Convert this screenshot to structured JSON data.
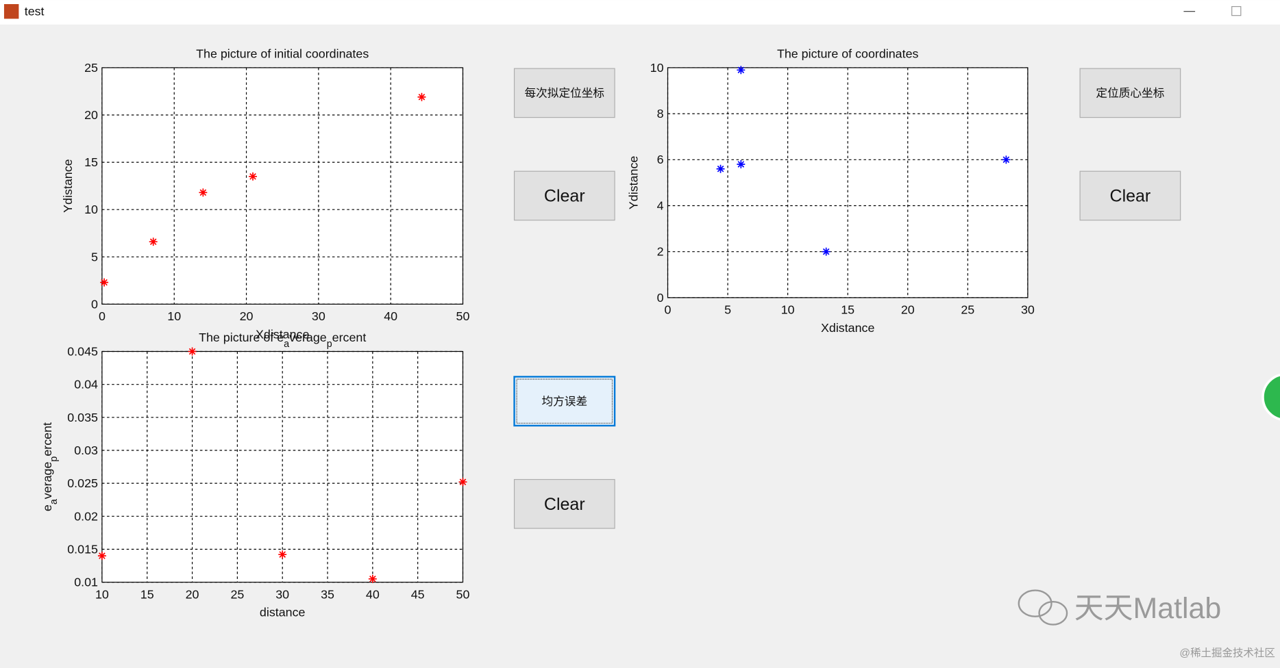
{
  "window": {
    "title": "test"
  },
  "chart_data": [
    {
      "type": "scatter",
      "title": "The picture of initial coordinates",
      "x_label": "Xdistance",
      "y_label": "Ydistance",
      "x": [
        0.3,
        7.1,
        14,
        20.9,
        44.3
      ],
      "values": [
        2.3,
        6.6,
        11.8,
        13.5,
        21.9
      ],
      "color": "#ff0000",
      "marker": "*",
      "xlim": [
        0,
        50
      ],
      "xticks": [
        0,
        10,
        20,
        30,
        40,
        50
      ],
      "ylim": [
        0,
        25
      ],
      "yticks": [
        0,
        5,
        10,
        15,
        20,
        25
      ],
      "grid": true
    },
    {
      "type": "scatter",
      "title": "The picture of coordinates",
      "x_label": "Xdistance",
      "y_label": "Ydistance",
      "x": [
        4.4,
        6.1,
        6.1,
        13.2,
        28.2
      ],
      "values": [
        5.6,
        5.8,
        9.9,
        2.0,
        6.0
      ],
      "color": "#0000ff",
      "marker": "*",
      "xlim": [
        0,
        30
      ],
      "xticks": [
        0,
        5,
        10,
        15,
        20,
        25,
        30
      ],
      "ylim": [
        0,
        10
      ],
      "yticks": [
        0,
        2,
        4,
        6,
        8,
        10
      ],
      "grid": true
    },
    {
      "type": "scatter",
      "title": "The picture of e_average_percent",
      "x_label": "distance",
      "y_label": "e_average_percent",
      "x": [
        10,
        20,
        30,
        40,
        50
      ],
      "values": [
        0.014,
        0.045,
        0.0142,
        0.0105,
        0.0252
      ],
      "color": "#ff0000",
      "marker": "*",
      "xlim": [
        10,
        50
      ],
      "xticks": [
        10,
        15,
        20,
        25,
        30,
        35,
        40,
        45,
        50
      ],
      "ylim": [
        0.01,
        0.045
      ],
      "yticks": [
        0.01,
        0.015,
        0.02,
        0.025,
        0.03,
        0.035,
        0.04,
        0.045
      ],
      "grid": true
    }
  ],
  "buttons": [
    "每次拟定位坐标",
    "Clear",
    "定位质心坐标",
    "Clear",
    "均方误差",
    "Clear"
  ],
  "watermark": {
    "brand": "天天Matlab",
    "site": "@稀土掘金技术社区"
  }
}
